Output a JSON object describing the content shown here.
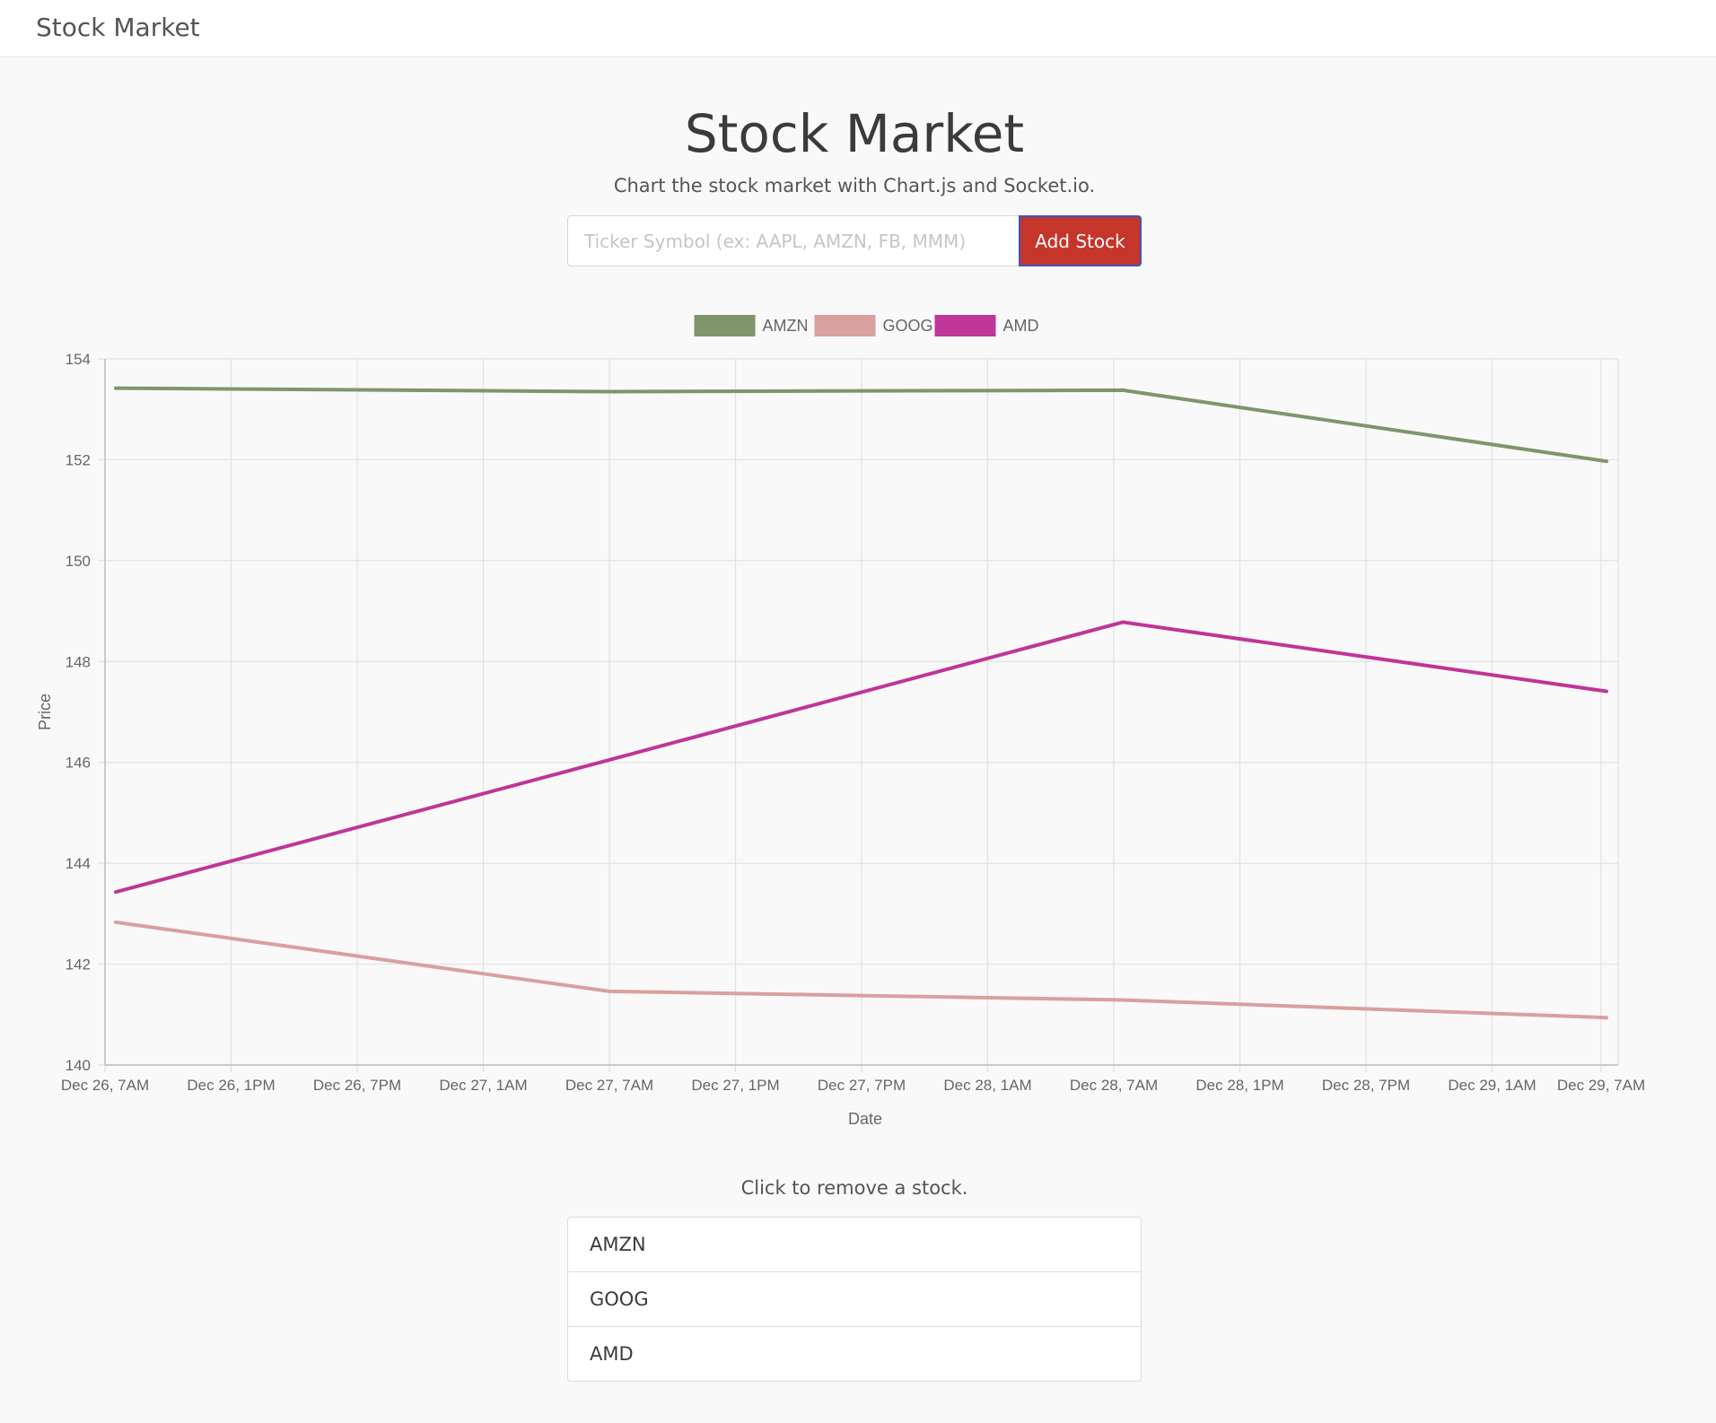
{
  "navbar": {
    "brand": "Stock Market"
  },
  "header": {
    "title": "Stock Market",
    "subtitle": "Chart the stock market with Chart.js and Socket.io."
  },
  "form": {
    "placeholder": "Ticker Symbol (ex: AAPL, AMZN, FB, MMM)",
    "value": "",
    "add_label": "Add Stock",
    "add_color": "#c6352a"
  },
  "chart_data": {
    "type": "line",
    "title": "",
    "xlabel": "Date",
    "ylabel": "Price",
    "ylim": [
      140,
      154
    ],
    "yticks": [
      140,
      142,
      144,
      146,
      148,
      150,
      152,
      154
    ],
    "x_tick_labels": [
      "Dec 26, 7AM",
      "Dec 26, 1PM",
      "Dec 26, 7PM",
      "Dec 27, 1AM",
      "Dec 27, 7AM",
      "Dec 27, 1PM",
      "Dec 27, 7PM",
      "Dec 28, 1AM",
      "Dec 28, 7AM",
      "Dec 28, 1PM",
      "Dec 28, 7PM",
      "Dec 29, 1AM",
      "Dec 29, 7AM"
    ],
    "x": [
      "Dec 26, 7AM",
      "Dec 27, 7AM",
      "Dec 28, 7AM",
      "Dec 29, 7AM"
    ],
    "grid": true,
    "legend_position": "top",
    "series": [
      {
        "name": "AMZN",
        "color": "#80956a",
        "values": [
          153.42,
          153.35,
          153.38,
          151.97
        ]
      },
      {
        "name": "GOOG",
        "color": "#d9a0a0",
        "values": [
          142.83,
          141.46,
          141.29,
          140.94
        ]
      },
      {
        "name": "AMD",
        "color": "#c03598",
        "values": [
          143.43,
          146.05,
          148.78,
          147.41
        ]
      }
    ]
  },
  "stocks": {
    "hint": "Click to remove a stock.",
    "items": [
      "AMZN",
      "GOOG",
      "AMD"
    ]
  }
}
